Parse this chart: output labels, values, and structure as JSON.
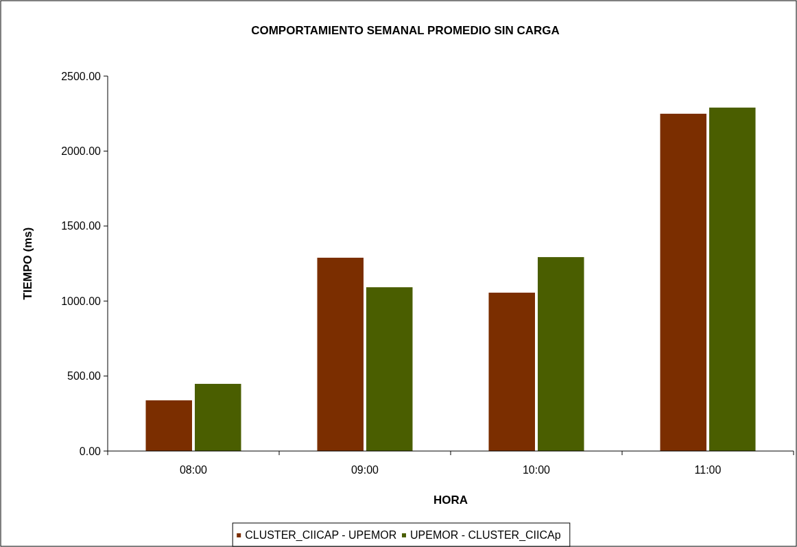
{
  "chart_data": {
    "type": "bar",
    "title": "COMPORTAMIENTO SEMANAL PROMEDIO SIN CARGA",
    "xlabel": "HORA",
    "ylabel": "TIEMPO (ms)",
    "categories": [
      "08:00",
      "09:00",
      "10:00",
      "11:00"
    ],
    "series": [
      {
        "name": "CLUSTER_CIICAP - UPEMOR",
        "color": "#7b2e00",
        "values": [
          338,
          1289,
          1056,
          2249
        ]
      },
      {
        "name": "UPEMOR - CLUSTER_CIICAp",
        "color": "#4a5e00",
        "values": [
          448,
          1092,
          1293,
          2290
        ]
      }
    ],
    "ylim": [
      0,
      2500
    ],
    "yticks": [
      {
        "value": 0,
        "label": "0.00"
      },
      {
        "value": 500,
        "label": "500.00"
      },
      {
        "value": 1000,
        "label": "1000.00"
      },
      {
        "value": 1500,
        "label": "1500.00"
      },
      {
        "value": 2000,
        "label": "2000.00"
      },
      {
        "value": 2500,
        "label": "2500.00"
      }
    ],
    "grid": false,
    "legend": "bottom"
  }
}
